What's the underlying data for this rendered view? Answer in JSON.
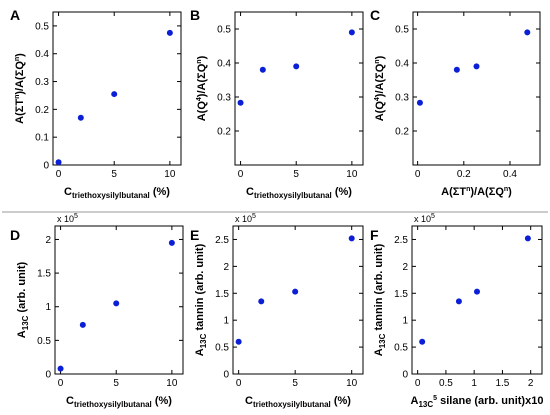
{
  "colors": {
    "points": "#0b1fd6",
    "axes": "#000000",
    "divider": "#999999"
  },
  "chart_data": [
    {
      "panel": "A",
      "type": "scatter",
      "title": "",
      "xlabel": {
        "main": "C",
        "sub": "triethoxysilylbutanal",
        "tail": " (%)"
      },
      "ylabel": {
        "main": "A(ΣT",
        "sup": "n",
        "tail": ")/A(ΣQ",
        "sup2": "n",
        "tail2": ")"
      },
      "x": [
        0,
        2,
        5,
        10
      ],
      "y": [
        0.01,
        0.17,
        0.255,
        0.475
      ],
      "xlim": [
        -0.5,
        11
      ],
      "ylim": [
        0,
        0.55
      ],
      "xticks": [
        0,
        5,
        10
      ],
      "yticks": [
        0,
        0.1,
        0.2,
        0.3,
        0.4,
        0.5
      ],
      "xtick_labels": [
        "0",
        "5",
        "10"
      ],
      "ytick_labels": [
        "0",
        "0.1",
        "0.2",
        "0.3",
        "0.4",
        "0.5"
      ],
      "exponent": "",
      "grid": false
    },
    {
      "panel": "B",
      "type": "scatter",
      "title": "",
      "xlabel": {
        "main": "C",
        "sub": "triethoxysilylbutanal",
        "tail": " (%)"
      },
      "ylabel": {
        "main": "A(Q",
        "sup": "4",
        "tail": ")/A(ΣQ",
        "sup2": "n",
        "tail2": ")"
      },
      "x": [
        0,
        2,
        5,
        10
      ],
      "y": [
        0.283,
        0.38,
        0.39,
        0.49
      ],
      "xlim": [
        -0.5,
        11
      ],
      "ylim": [
        0.1,
        0.55
      ],
      "xticks": [
        0,
        5,
        10
      ],
      "yticks": [
        0.2,
        0.3,
        0.4,
        0.5
      ],
      "xtick_labels": [
        "0",
        "5",
        "10"
      ],
      "ytick_labels": [
        "0.2",
        "0.3",
        "0.4",
        "0.5"
      ],
      "exponent": "",
      "grid": false
    },
    {
      "panel": "C",
      "type": "scatter",
      "title": "",
      "xlabel": {
        "main": "A(ΣT",
        "sup": "n",
        "tail": ")/A(ΣQ",
        "sup2": "n",
        "tail2": ")"
      },
      "ylabel": {
        "main": "A(Q",
        "sup": "4",
        "tail": ")/A(ΣQ",
        "sup2": "n",
        "tail2": ")"
      },
      "x": [
        0.01,
        0.17,
        0.255,
        0.475
      ],
      "y": [
        0.283,
        0.38,
        0.39,
        0.49
      ],
      "xlim": [
        -0.02,
        0.53
      ],
      "ylim": [
        0.1,
        0.55
      ],
      "xticks": [
        0,
        0.2,
        0.4
      ],
      "yticks": [
        0.2,
        0.3,
        0.4,
        0.5
      ],
      "xtick_labels": [
        "0",
        "0.2",
        "0.4"
      ],
      "ytick_labels": [
        "0.2",
        "0.3",
        "0.4",
        "0.5"
      ],
      "exponent": "",
      "grid": false
    },
    {
      "panel": "D",
      "type": "scatter",
      "title": "",
      "xlabel": {
        "main": "C",
        "sub": "triethoxysilylbutanal",
        "tail": " (%)"
      },
      "ylabel": {
        "main": "A",
        "sub": "13C",
        "tail": " (arb. unit)"
      },
      "x": [
        0,
        2,
        5,
        10
      ],
      "y": [
        0.08,
        0.73,
        1.05,
        1.95
      ],
      "xlim": [
        -0.5,
        11
      ],
      "ylim": [
        0,
        2.2
      ],
      "xticks": [
        0,
        5,
        10
      ],
      "yticks": [
        0,
        0.5,
        1,
        1.5,
        2
      ],
      "xtick_labels": [
        "0",
        "5",
        "10"
      ],
      "ytick_labels": [
        "0",
        "0.5",
        "1",
        "1.5",
        "2"
      ],
      "exponent": {
        "base": "x 10",
        "power": "5"
      },
      "grid": false
    },
    {
      "panel": "E",
      "type": "scatter",
      "title": "",
      "xlabel": {
        "main": "C",
        "sub": "triethoxysilylbutanal",
        "tail": " (%)"
      },
      "ylabel": {
        "main": "A",
        "sub": "13C",
        "tail": " tannin (arb. unit)"
      },
      "x": [
        0,
        2,
        5,
        10
      ],
      "y": [
        0.6,
        1.35,
        1.53,
        2.52
      ],
      "xlim": [
        -0.5,
        11
      ],
      "ylim": [
        0,
        2.75
      ],
      "xticks": [
        0,
        5,
        10
      ],
      "yticks": [
        0,
        0.5,
        1,
        1.5,
        2,
        2.5
      ],
      "xtick_labels": [
        "0",
        "5",
        "10"
      ],
      "ytick_labels": [
        "0",
        "0.5",
        "1",
        "1.5",
        "2",
        "2.5"
      ],
      "exponent": {
        "base": "x 10",
        "power": "5"
      },
      "grid": false
    },
    {
      "panel": "F",
      "type": "scatter",
      "title": "",
      "xlabel": {
        "main": "A",
        "sub": "13C",
        "tail": " silane (arb. unit)x10",
        "sup": "5"
      },
      "ylabel": {
        "main": "A",
        "sub": "13C",
        "tail": " tannin (arb. unit)"
      },
      "x": [
        0.08,
        0.73,
        1.05,
        1.95
      ],
      "y": [
        0.6,
        1.35,
        1.53,
        2.52
      ],
      "xlim": [
        -0.1,
        2.2
      ],
      "ylim": [
        0,
        2.75
      ],
      "xticks": [
        0,
        0.5,
        1,
        1.5,
        2
      ],
      "yticks": [
        0,
        0.5,
        1,
        1.5,
        2,
        2.5
      ],
      "xtick_labels": [
        "0",
        "0.5",
        "1",
        "1.5",
        "2"
      ],
      "ytick_labels": [
        "0",
        "0.5",
        "1",
        "1.5",
        "2",
        "2.5"
      ],
      "exponent": {
        "base": "x 10",
        "power": "5"
      },
      "grid": false
    }
  ]
}
